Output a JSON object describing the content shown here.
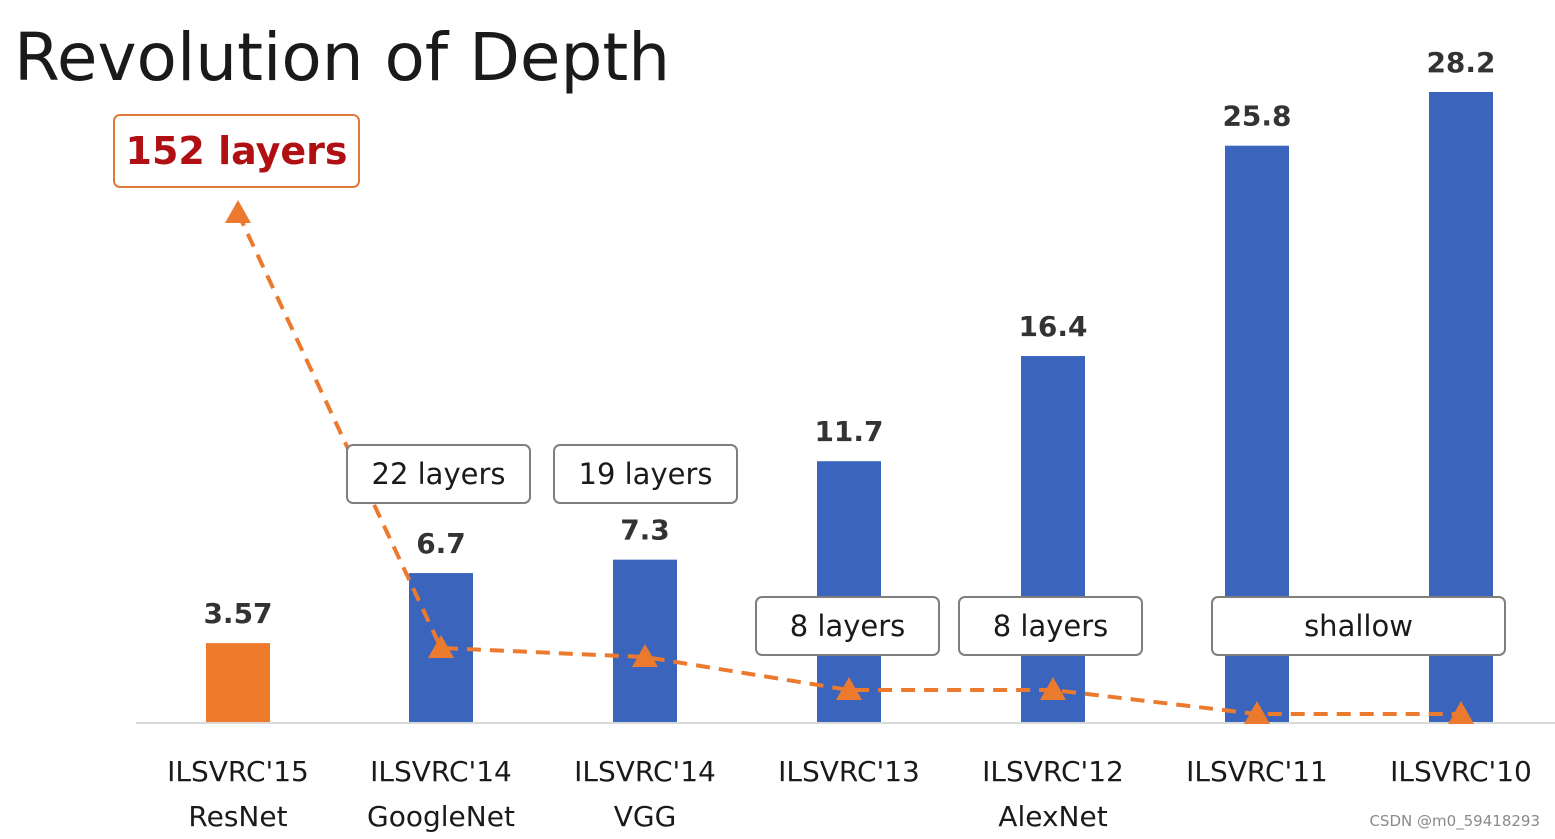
{
  "title": "Revolution of Depth",
  "watermark": "CSDN @m0_59418293",
  "colors": {
    "bar": "#3b64bd",
    "highlight_bar": "#ee7a2c",
    "line": "#ec7a2e",
    "highlight_text": "#b00f14",
    "box_border": "#7f7f7f",
    "highlight_box_border": "#e07a3a"
  },
  "chart_data": {
    "type": "bar",
    "categories": [
      [
        "ILSVRC'15",
        "ResNet"
      ],
      [
        "ILSVRC'14",
        "GoogleNet"
      ],
      [
        "ILSVRC'14",
        "VGG"
      ],
      [
        "ILSVRC'13",
        ""
      ],
      [
        "ILSVRC'12",
        "AlexNet"
      ],
      [
        "ILSVRC'11",
        ""
      ],
      [
        "ILSVRC'10",
        ""
      ]
    ],
    "values": [
      3.57,
      6.7,
      7.3,
      11.7,
      16.4,
      25.8,
      28.2
    ],
    "value_labels": [
      "3.57",
      "6.7",
      "7.3",
      "11.7",
      "16.4",
      "25.8",
      "28.2"
    ],
    "highlight_index": 0,
    "depth_layers": [
      152,
      22,
      19,
      8,
      8,
      0,
      0
    ],
    "depth_annotations": [
      "152 layers",
      "22 layers",
      "19 layers",
      "8 layers",
      "8 layers",
      "shallow"
    ],
    "ylim": [
      0,
      30
    ],
    "grid": false,
    "legend": "none"
  }
}
